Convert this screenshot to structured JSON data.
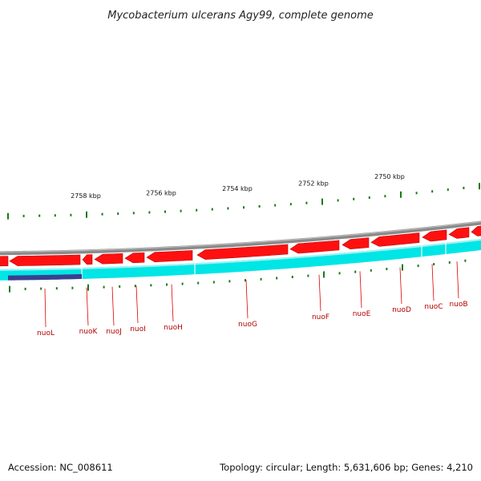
{
  "title": "Mycobacterium ulcerans Agy99, complete genome",
  "footer": {
    "accession": "Accession: NC_008611",
    "summary": "Topology: circular; Length: 5,631,606 bp; Genes: 4,210"
  },
  "colors": {
    "background": "#ffffff",
    "backbone": "#8a8a8a",
    "forward_genes": "#ff1010",
    "reverse_genes": "#00e5e5",
    "highlight_region": "#3b3f8f",
    "label_text": "#b30000",
    "tick_marks": "#1a7a1a"
  },
  "scale_labels": [
    "2758 kbp",
    "2756 kbp",
    "2754 kbp",
    "2752 kbp",
    "2750 kbp"
  ],
  "genes": [
    "nuoL",
    "nuoK",
    "nuoJ",
    "nuoI",
    "nuoH",
    "nuoG",
    "nuoF",
    "nuoE",
    "nuoD",
    "nuoC",
    "nuoB"
  ]
}
